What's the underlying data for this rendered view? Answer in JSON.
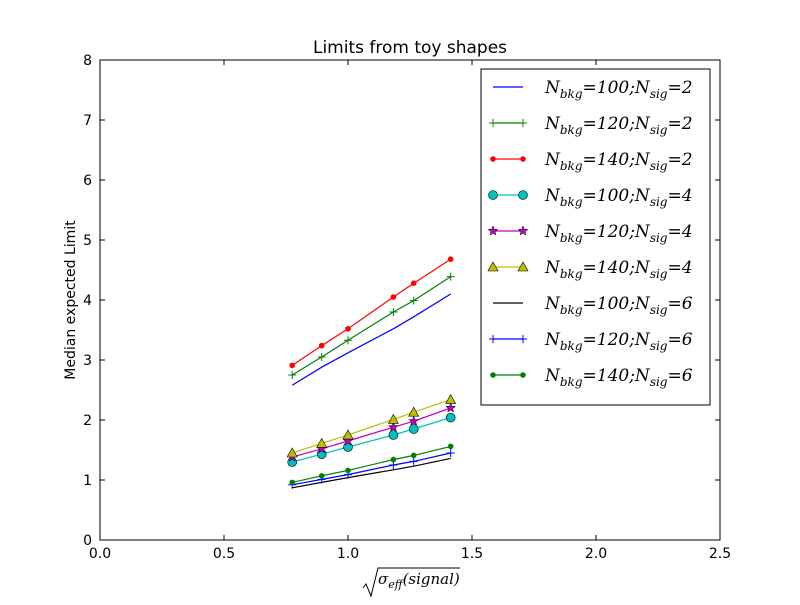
{
  "chart_data": {
    "type": "line",
    "title": "Limits from toy shapes",
    "xlabel": "√σ_eff(signal)",
    "ylabel": "Median expected Limit",
    "xlim": [
      0,
      2.5
    ],
    "ylim": [
      0,
      8
    ],
    "xticks": [
      "0.0",
      "0.5",
      "1.0",
      "1.5",
      "2.0",
      "2.5"
    ],
    "yticks": [
      "0",
      "1",
      "2",
      "3",
      "4",
      "5",
      "6",
      "7",
      "8"
    ],
    "grid": false,
    "legend_position": "top-right",
    "x": [
      0.775,
      0.894,
      1.0,
      1.183,
      1.265,
      1.414
    ],
    "series": [
      {
        "label": "N_bkg=100;N_sig=2",
        "bkg": "100",
        "sig": "2",
        "color": "#0000ff",
        "marker": "none",
        "values": [
          2.58,
          2.88,
          3.12,
          3.52,
          3.72,
          4.1
        ]
      },
      {
        "label": "N_bkg=120;N_sig=2",
        "bkg": "120",
        "sig": "2",
        "color": "#008000",
        "marker": "plus",
        "values": [
          2.75,
          3.05,
          3.33,
          3.8,
          3.99,
          4.39
        ]
      },
      {
        "label": "N_bkg=140;N_sig=2",
        "bkg": "140",
        "sig": "2",
        "color": "#ff0000",
        "marker": "point",
        "values": [
          2.91,
          3.24,
          3.52,
          4.05,
          4.28,
          4.68
        ]
      },
      {
        "label": "N_bkg=100;N_sig=4",
        "bkg": "100",
        "sig": "4",
        "color": "#00bfbf",
        "marker": "circle",
        "values": [
          1.3,
          1.43,
          1.55,
          1.75,
          1.85,
          2.04
        ]
      },
      {
        "label": "N_bkg=120;N_sig=4",
        "bkg": "120",
        "sig": "4",
        "color": "#bf00bf",
        "marker": "star",
        "values": [
          1.38,
          1.52,
          1.65,
          1.88,
          1.98,
          2.2
        ]
      },
      {
        "label": "N_bkg=140;N_sig=4",
        "bkg": "140",
        "sig": "4",
        "color": "#bfbf00",
        "marker": "triangle",
        "values": [
          1.45,
          1.61,
          1.75,
          2.01,
          2.13,
          2.34
        ]
      },
      {
        "label": "N_bkg=100;N_sig=6",
        "bkg": "100",
        "sig": "6",
        "color": "#000000",
        "marker": "none",
        "values": [
          0.87,
          0.96,
          1.04,
          1.17,
          1.23,
          1.36
        ]
      },
      {
        "label": "N_bkg=120;N_sig=6",
        "bkg": "120",
        "sig": "6",
        "color": "#0000ff",
        "marker": "plus",
        "values": [
          0.92,
          1.01,
          1.09,
          1.25,
          1.31,
          1.45
        ]
      },
      {
        "label": "N_bkg=140;N_sig=6",
        "bkg": "140",
        "sig": "6",
        "color": "#008000",
        "marker": "point",
        "values": [
          0.96,
          1.07,
          1.16,
          1.34,
          1.41,
          1.56
        ]
      }
    ]
  }
}
